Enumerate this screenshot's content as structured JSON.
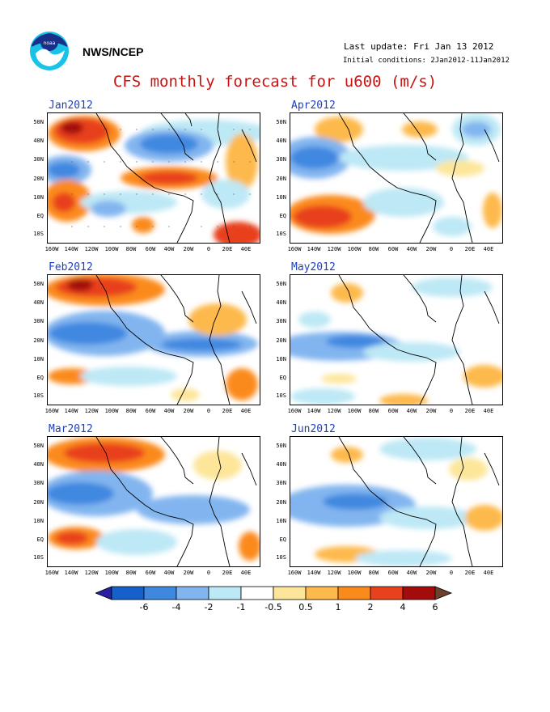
{
  "header": {
    "org": "NWS/NCEP",
    "last_update": "Last update: Fri Jan 13 2012",
    "initial_conditions": "Initial conditions: 2Jan2012-11Jan2012"
  },
  "title": "CFS monthly forecast for u600 (m/s)",
  "lat_ticks": [
    "50N",
    "40N",
    "30N",
    "20N",
    "10N",
    "EQ",
    "10S"
  ],
  "lon_ticks": [
    "160W",
    "140W",
    "120W",
    "100W",
    "80W",
    "60W",
    "40W",
    "20W",
    "0",
    "20E",
    "40E"
  ],
  "colorbar": {
    "labels": [
      "-6",
      "-4",
      "-2",
      "-1",
      "-0.5",
      "0.5",
      "1",
      "2",
      "4",
      "6"
    ],
    "colors": [
      "#2a1fa0",
      "#1660cc",
      "#3f88e0",
      "#82b5ef",
      "#bde8f5",
      "#ffffff",
      "#fde69a",
      "#fdb94c",
      "#fb8a1c",
      "#e8411b",
      "#a40c0c",
      "#70402f"
    ]
  },
  "panels": [
    {
      "id": "jan",
      "label": "Jan2012"
    },
    {
      "id": "apr",
      "label": "Apr2012"
    },
    {
      "id": "feb",
      "label": "Feb2012"
    },
    {
      "id": "may",
      "label": "May2012"
    },
    {
      "id": "mar",
      "label": "Mar2012"
    },
    {
      "id": "jun",
      "label": "Jun2012"
    }
  ]
}
